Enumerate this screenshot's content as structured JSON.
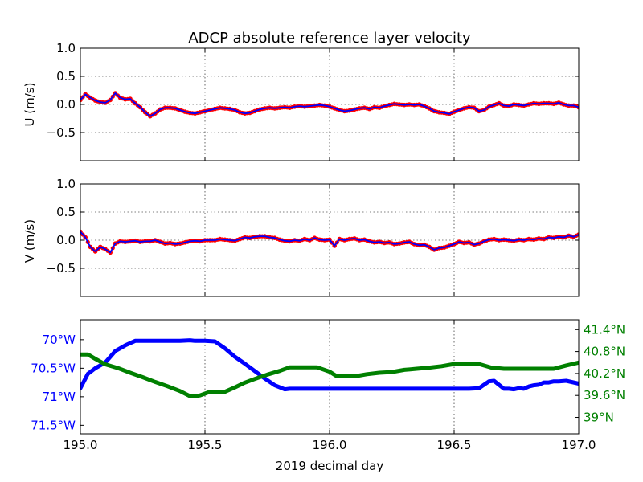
{
  "chart_data": {
    "title": "ADCP absolute reference layer velocity",
    "xlabel": "2019 decimal day",
    "x_ticks": [
      {
        "value": 195.0,
        "label": "195.0"
      },
      {
        "value": 195.5,
        "label": "195.5"
      },
      {
        "value": 196.0,
        "label": "196.0"
      },
      {
        "value": 196.5,
        "label": "196.5"
      },
      {
        "value": 197.0,
        "label": "197.0"
      }
    ],
    "xlim": [
      195.0,
      197.0
    ],
    "grid": true,
    "colors": {
      "raw_points": "#ff0000",
      "smoothed_line": "#0000ff",
      "longitude": "#0000ff",
      "latitude": "#008000"
    },
    "panels": [
      {
        "type": "line",
        "ylabel": "U (m/s)",
        "ylim": [
          -1.0,
          1.0
        ],
        "y_ticks": [
          {
            "value": 1.0,
            "label": "1.0"
          },
          {
            "value": 0.5,
            "label": "0.5"
          },
          {
            "value": 0.0,
            "label": "0.0"
          },
          {
            "value": -0.5,
            "label": "−0.5"
          }
        ],
        "series": [
          {
            "style": "red dots with blue line",
            "x": [
              195.0,
              195.02,
              195.04,
              195.06,
              195.08,
              195.1,
              195.12,
              195.14,
              195.16,
              195.18,
              195.2,
              195.22,
              195.24,
              195.26,
              195.28,
              195.3,
              195.32,
              195.34,
              195.36,
              195.38,
              195.4,
              195.42,
              195.44,
              195.46,
              195.48,
              195.5,
              195.52,
              195.54,
              195.56,
              195.58,
              195.6,
              195.62,
              195.64,
              195.66,
              195.68,
              195.7,
              195.72,
              195.74,
              195.76,
              195.78,
              195.8,
              195.82,
              195.84,
              195.86,
              195.88,
              195.9,
              195.92,
              195.94,
              195.96,
              195.98,
              196.0,
              196.02,
              196.04,
              196.06,
              196.08,
              196.1,
              196.12,
              196.14,
              196.16,
              196.18,
              196.2,
              196.22,
              196.24,
              196.26,
              196.28,
              196.3,
              196.32,
              196.34,
              196.36,
              196.38,
              196.4,
              196.42,
              196.44,
              196.46,
              196.48,
              196.5,
              196.52,
              196.54,
              196.56,
              196.58,
              196.6,
              196.62,
              196.64,
              196.66,
              196.68,
              196.7,
              196.72,
              196.74,
              196.76,
              196.78,
              196.8,
              196.82,
              196.84,
              196.86,
              196.88,
              196.9,
              196.92,
              196.94,
              196.96,
              196.98,
              197.0
            ],
            "y": [
              0.08,
              0.18,
              0.12,
              0.07,
              0.04,
              0.03,
              0.08,
              0.2,
              0.12,
              0.09,
              0.1,
              0.02,
              -0.05,
              -0.14,
              -0.21,
              -0.16,
              -0.09,
              -0.06,
              -0.06,
              -0.07,
              -0.1,
              -0.13,
              -0.15,
              -0.16,
              -0.14,
              -0.12,
              -0.1,
              -0.08,
              -0.06,
              -0.07,
              -0.08,
              -0.1,
              -0.14,
              -0.16,
              -0.15,
              -0.12,
              -0.09,
              -0.07,
              -0.06,
              -0.07,
              -0.06,
              -0.05,
              -0.06,
              -0.04,
              -0.03,
              -0.04,
              -0.03,
              -0.02,
              -0.01,
              -0.02,
              -0.04,
              -0.07,
              -0.1,
              -0.12,
              -0.11,
              -0.09,
              -0.07,
              -0.06,
              -0.08,
              -0.05,
              -0.06,
              -0.03,
              -0.01,
              0.01,
              0.0,
              -0.01,
              0.0,
              -0.01,
              0.0,
              -0.03,
              -0.07,
              -0.12,
              -0.14,
              -0.15,
              -0.17,
              -0.13,
              -0.1,
              -0.07,
              -0.05,
              -0.06,
              -0.12,
              -0.1,
              -0.04,
              -0.01,
              0.02,
              -0.02,
              -0.03,
              0.0,
              -0.01,
              -0.02,
              0.0,
              0.02,
              0.01,
              0.02,
              0.02,
              0.01,
              0.03,
              0.0,
              -0.02,
              -0.02,
              -0.05
            ]
          }
        ]
      },
      {
        "type": "line",
        "ylabel": "V (m/s)",
        "ylim": [
          -1.0,
          1.0
        ],
        "y_ticks": [
          {
            "value": 1.0,
            "label": "1.0"
          },
          {
            "value": 0.5,
            "label": "0.5"
          },
          {
            "value": 0.0,
            "label": "0.0"
          },
          {
            "value": -0.5,
            "label": "−0.5"
          }
        ],
        "series": [
          {
            "style": "red dots with blue line",
            "x": [
              195.0,
              195.02,
              195.04,
              195.06,
              195.08,
              195.1,
              195.12,
              195.14,
              195.16,
              195.18,
              195.2,
              195.22,
              195.24,
              195.26,
              195.28,
              195.3,
              195.32,
              195.34,
              195.36,
              195.38,
              195.4,
              195.42,
              195.44,
              195.46,
              195.48,
              195.5,
              195.52,
              195.54,
              195.56,
              195.58,
              195.6,
              195.62,
              195.64,
              195.66,
              195.68,
              195.7,
              195.72,
              195.74,
              195.76,
              195.78,
              195.8,
              195.82,
              195.84,
              195.86,
              195.88,
              195.9,
              195.92,
              195.94,
              195.96,
              195.98,
              196.0,
              196.02,
              196.04,
              196.06,
              196.08,
              196.1,
              196.12,
              196.14,
              196.16,
              196.18,
              196.2,
              196.22,
              196.24,
              196.26,
              196.28,
              196.3,
              196.32,
              196.34,
              196.36,
              196.38,
              196.4,
              196.42,
              196.44,
              196.46,
              196.48,
              196.5,
              196.52,
              196.54,
              196.56,
              196.58,
              196.6,
              196.62,
              196.64,
              196.66,
              196.68,
              196.7,
              196.72,
              196.74,
              196.76,
              196.78,
              196.8,
              196.82,
              196.84,
              196.86,
              196.88,
              196.9,
              196.92,
              196.94,
              196.96,
              196.98,
              197.0
            ],
            "y": [
              0.15,
              0.05,
              -0.12,
              -0.2,
              -0.12,
              -0.16,
              -0.22,
              -0.06,
              -0.02,
              -0.03,
              -0.02,
              -0.01,
              -0.03,
              -0.02,
              -0.02,
              0.0,
              -0.03,
              -0.06,
              -0.05,
              -0.07,
              -0.06,
              -0.04,
              -0.02,
              -0.01,
              -0.02,
              0.0,
              0.0,
              0.0,
              0.02,
              0.01,
              0.0,
              -0.01,
              0.02,
              0.05,
              0.04,
              0.06,
              0.07,
              0.07,
              0.05,
              0.04,
              0.01,
              -0.01,
              -0.02,
              0.0,
              -0.01,
              0.02,
              0.0,
              0.04,
              0.01,
              0.0,
              0.01,
              -0.1,
              0.02,
              0.0,
              0.02,
              0.03,
              0.0,
              0.01,
              -0.02,
              -0.04,
              -0.03,
              -0.05,
              -0.04,
              -0.07,
              -0.06,
              -0.04,
              -0.03,
              -0.07,
              -0.09,
              -0.08,
              -0.12,
              -0.17,
              -0.14,
              -0.13,
              -0.1,
              -0.07,
              -0.03,
              -0.05,
              -0.04,
              -0.08,
              -0.06,
              -0.02,
              0.01,
              0.02,
              0.0,
              0.01,
              0.0,
              -0.01,
              0.01,
              0.0,
              0.02,
              0.01,
              0.03,
              0.02,
              0.05,
              0.04,
              0.06,
              0.05,
              0.08,
              0.06,
              0.1
            ]
          }
        ]
      },
      {
        "type": "line",
        "y_ticks_left": [
          {
            "value": -70.0,
            "label": "70°W"
          },
          {
            "value": -70.5,
            "label": "70.5°W"
          },
          {
            "value": -71.0,
            "label": "71°W"
          },
          {
            "value": -71.5,
            "label": "71.5°W"
          }
        ],
        "ylim_left": [
          -71.65,
          -69.65
        ],
        "y_ticks_right": [
          {
            "value": 41.4,
            "label": "41.4°N"
          },
          {
            "value": 40.8,
            "label": "40.8°N"
          },
          {
            "value": 40.2,
            "label": "40.2°N"
          },
          {
            "value": 39.6,
            "label": "39.6°N"
          },
          {
            "value": 39.0,
            "label": "39°N"
          }
        ],
        "ylim_right": [
          38.55,
          41.67
        ],
        "series": [
          {
            "color": "#0000ff",
            "axis": "left",
            "x": [
              195.0,
              195.03,
              195.06,
              195.1,
              195.14,
              195.18,
              195.22,
              195.26,
              195.3,
              195.35,
              195.4,
              195.44,
              195.46,
              195.5,
              195.54,
              195.58,
              195.62,
              195.66,
              195.7,
              195.74,
              195.78,
              195.82,
              195.84,
              195.9,
              196.0,
              196.1,
              196.2,
              196.3,
              196.4,
              196.5,
              196.56,
              196.6,
              196.64,
              196.66,
              196.7,
              196.72,
              196.74,
              196.76,
              196.78,
              196.8,
              196.82,
              196.84,
              196.86,
              196.88,
              196.9,
              196.92,
              196.95,
              197.0
            ],
            "y": [
              -70.85,
              -70.6,
              -70.5,
              -70.4,
              -70.2,
              -70.1,
              -70.02,
              -70.02,
              -70.02,
              -70.02,
              -70.02,
              -70.01,
              -70.02,
              -70.02,
              -70.03,
              -70.15,
              -70.3,
              -70.42,
              -70.55,
              -70.68,
              -70.8,
              -70.87,
              -70.86,
              -70.86,
              -70.86,
              -70.86,
              -70.86,
              -70.86,
              -70.86,
              -70.86,
              -70.86,
              -70.85,
              -70.73,
              -70.72,
              -70.86,
              -70.86,
              -70.87,
              -70.85,
              -70.86,
              -70.82,
              -70.8,
              -70.79,
              -70.75,
              -70.75,
              -70.73,
              -70.73,
              -70.72,
              -70.77
            ]
          },
          {
            "color": "#008000",
            "axis": "right",
            "x": [
              195.0,
              195.03,
              195.06,
              195.1,
              195.15,
              195.2,
              195.25,
              195.3,
              195.35,
              195.4,
              195.44,
              195.46,
              195.48,
              195.52,
              195.54,
              195.58,
              195.62,
              195.66,
              195.7,
              195.75,
              195.8,
              195.84,
              195.9,
              195.95,
              196.0,
              196.03,
              196.06,
              196.1,
              196.15,
              196.2,
              196.25,
              196.3,
              196.35,
              196.4,
              196.45,
              196.5,
              196.55,
              196.57,
              196.6,
              196.65,
              196.7,
              196.75,
              196.8,
              196.85,
              196.9,
              196.95,
              197.0
            ],
            "y": [
              40.72,
              40.72,
              40.6,
              40.45,
              40.35,
              40.22,
              40.1,
              39.97,
              39.85,
              39.72,
              39.58,
              39.58,
              39.6,
              39.7,
              39.7,
              39.7,
              39.82,
              39.95,
              40.05,
              40.17,
              40.27,
              40.37,
              40.37,
              40.37,
              40.25,
              40.12,
              40.12,
              40.12,
              40.18,
              40.22,
              40.24,
              40.3,
              40.33,
              40.36,
              40.4,
              40.46,
              40.46,
              40.46,
              40.46,
              40.36,
              40.33,
              40.33,
              40.33,
              40.33,
              40.33,
              40.42,
              40.5
            ]
          }
        ]
      }
    ]
  }
}
